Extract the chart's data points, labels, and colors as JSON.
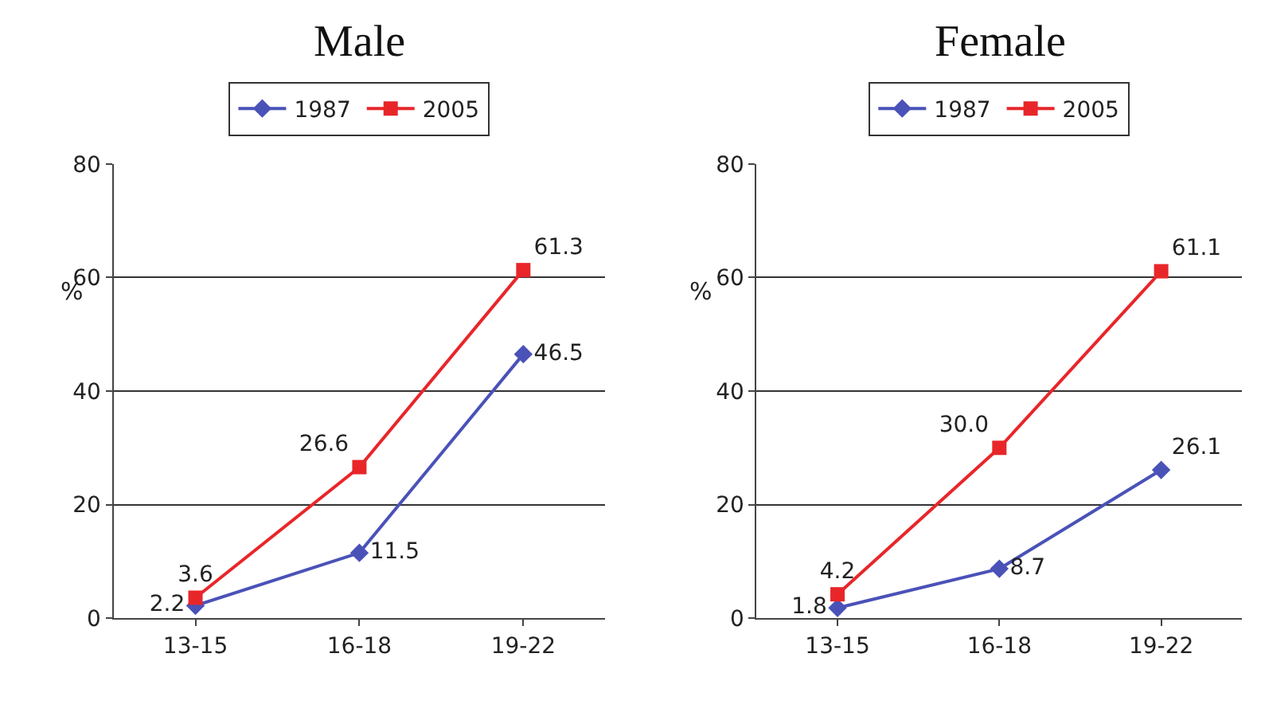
{
  "chart_data": [
    {
      "type": "line",
      "title": "Male",
      "ylabel": "%",
      "categories": [
        "13-15",
        "16-18",
        "19-22"
      ],
      "ylim": [
        0,
        80
      ],
      "yticks": [
        0,
        20,
        40,
        60,
        80
      ],
      "grid": "y",
      "legend": "top",
      "data_labels": true,
      "series": [
        {
          "name": "1987",
          "color": "#4a52b8",
          "marker": "diamond",
          "values": [
            2.2,
            11.5,
            46.5
          ]
        },
        {
          "name": "2005",
          "color": "#e8262a",
          "marker": "square",
          "values": [
            3.6,
            26.6,
            61.3
          ]
        }
      ]
    },
    {
      "type": "line",
      "title": "Female",
      "ylabel": "%",
      "categories": [
        "13-15",
        "16-18",
        "19-22"
      ],
      "ylim": [
        0,
        80
      ],
      "yticks": [
        0,
        20,
        40,
        60,
        80
      ],
      "grid": "y",
      "legend": "top",
      "data_labels": true,
      "series": [
        {
          "name": "1987",
          "color": "#4a52b8",
          "marker": "diamond",
          "values": [
            1.8,
            8.7,
            26.1
          ]
        },
        {
          "name": "2005",
          "color": "#e8262a",
          "marker": "square",
          "values": [
            4.2,
            30.0,
            61.1
          ],
          "value_labels": [
            "4.2",
            "30.0",
            "61.1"
          ]
        }
      ]
    }
  ]
}
